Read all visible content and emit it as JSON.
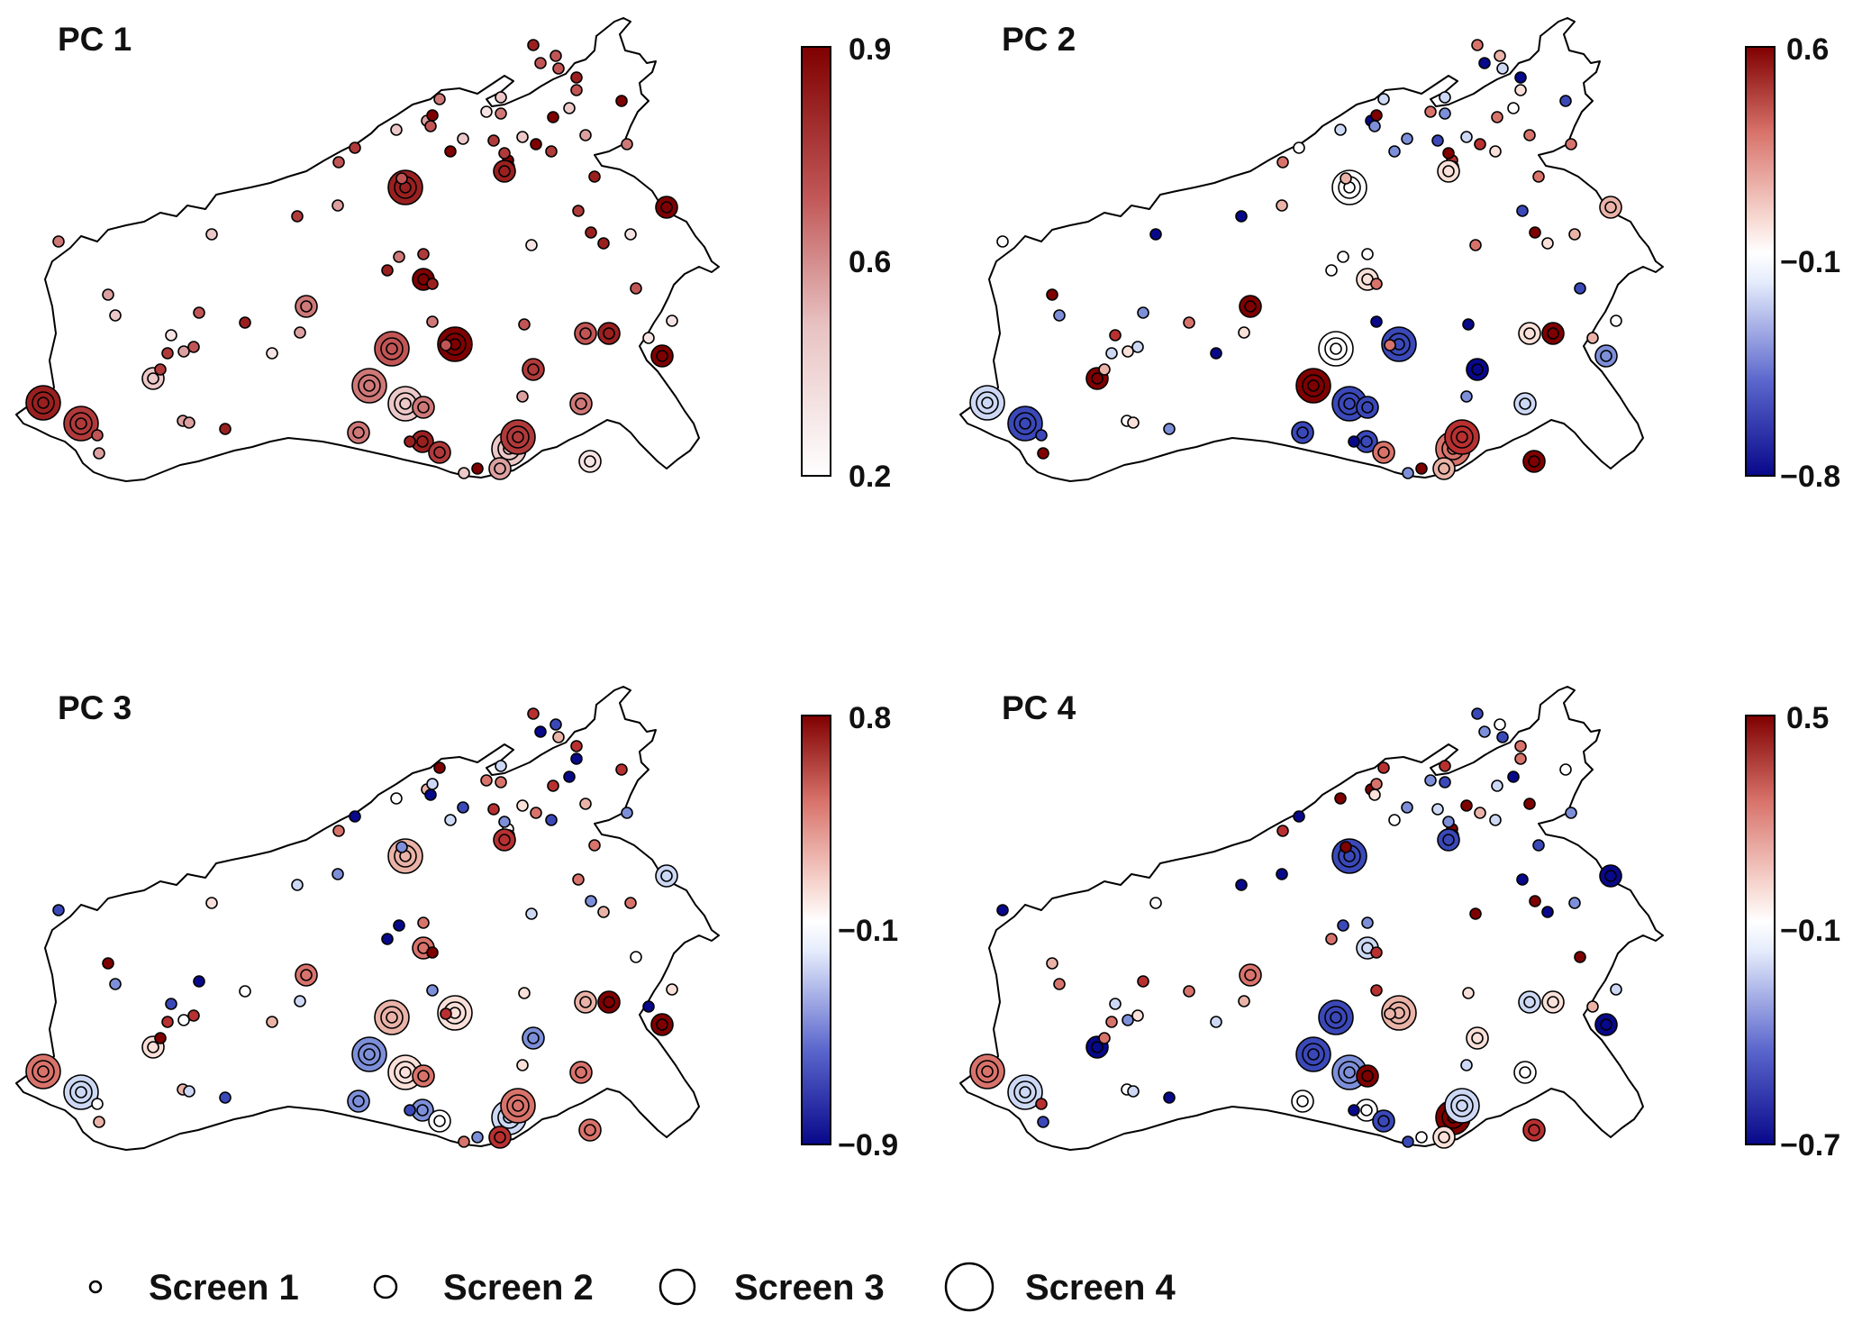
{
  "panels": [
    {
      "title": "PC 1",
      "scale": "seq",
      "ticks": [
        "0.9",
        "0.6",
        "0.2"
      ]
    },
    {
      "title": "PC 2",
      "scale": "div",
      "ticks": [
        "0.6",
        "−0.1",
        "−0.8"
      ]
    },
    {
      "title": "PC 3",
      "scale": "div",
      "ticks": [
        "0.8",
        "−0.1",
        "−0.9"
      ]
    },
    {
      "title": "PC 4",
      "scale": "div",
      "ticks": [
        "0.5",
        "−0.1",
        "−0.7"
      ]
    }
  ],
  "legend": [
    {
      "label": "Screen 1",
      "level": 1
    },
    {
      "label": "Screen 2",
      "level": 2
    },
    {
      "label": "Screen 3",
      "level": 3
    },
    {
      "label": "Screen 4",
      "level": 4
    }
  ],
  "colors": {
    "sequential": [
      "#ffffff",
      "#7f0000"
    ],
    "diverging": [
      "#08088a",
      "#ffffff",
      "#7f0000"
    ]
  }
}
